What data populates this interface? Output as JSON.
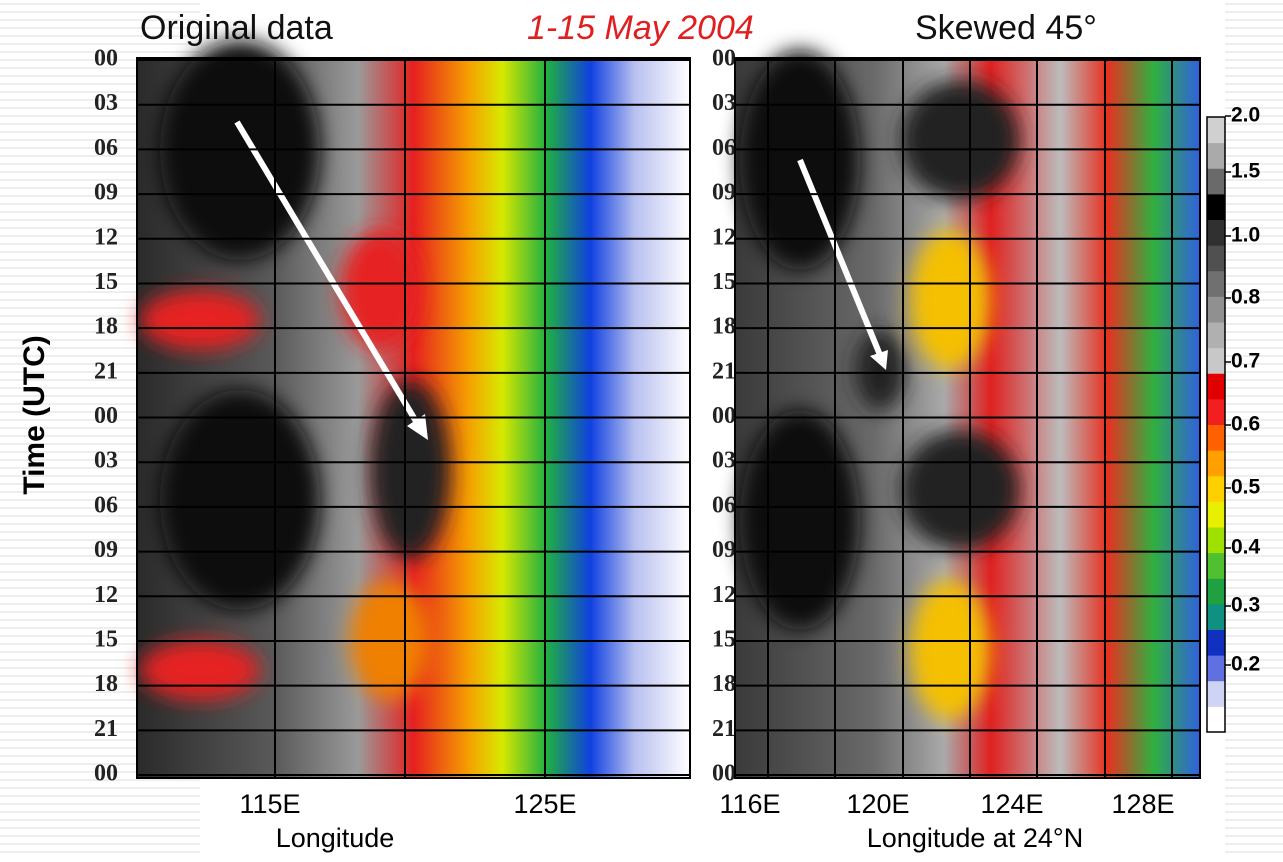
{
  "title": {
    "left": "Original data",
    "middle": "1-15 May 2004",
    "right": "Skewed 45°"
  },
  "y_axis_title": "Time (UTC)",
  "left_panel": {
    "y_labels": [
      "00",
      "03",
      "06",
      "09",
      "12",
      "15",
      "18",
      "21",
      "00",
      "03",
      "06",
      "09",
      "12",
      "15",
      "18",
      "21",
      "00"
    ],
    "x_labels": [
      "115E",
      "125E"
    ],
    "x_axis_title": "Longitude"
  },
  "right_panel": {
    "y_labels": [
      "00",
      "03",
      "06",
      "09",
      "12",
      "15",
      "18",
      "21",
      "00",
      "03",
      "06",
      "09",
      "12",
      "15",
      "18",
      "21",
      "00"
    ],
    "x_labels": [
      "116E",
      "120E",
      "124E",
      "128E"
    ],
    "x_axis_title": "Longitude at 24°N"
  },
  "colorbar": {
    "labels": [
      "2.0",
      "1.5",
      "1.0",
      "0.8",
      "0.7",
      "0.6",
      "0.5",
      "0.4",
      "0.3",
      "0.2"
    ]
  }
}
